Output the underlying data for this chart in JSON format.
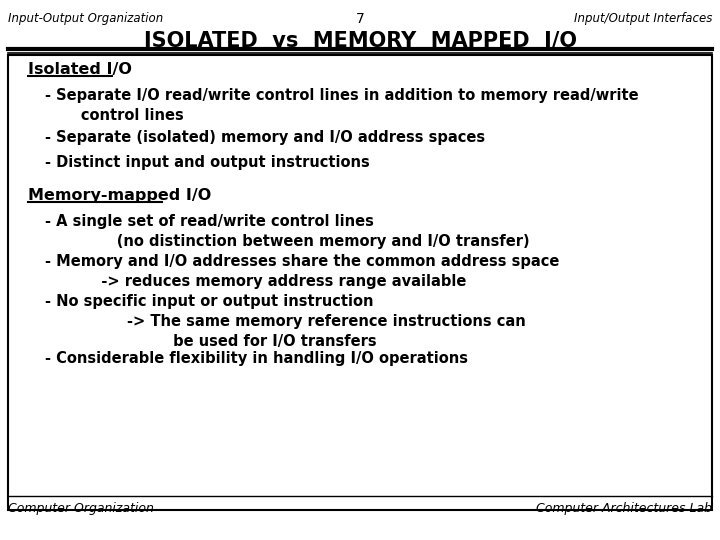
{
  "bg_color": "#ffffff",
  "border_color": "#000000",
  "header_top_left": "Input-Output Organization",
  "header_center": "7",
  "header_top_right": "Input/Output Interfaces",
  "title": "ISOLATED  vs  MEMORY  MAPPED  I/O",
  "footer_left": "Computer Organization",
  "footer_right": "Computer Architectures Lab",
  "section1_heading": "Isolated I/O",
  "section1_bullets": [
    "- Separate I/O read/write control lines in addition to memory read/write\n       control lines",
    "- Separate (isolated) memory and I/O address spaces",
    "- Distinct input and output instructions"
  ],
  "section2_heading": "Memory-mapped I/O",
  "section2_bullets": [
    "- A single set of read/write control lines\n              (no distinction between memory and I/O transfer)",
    "- Memory and I/O addresses share the common address space\n           -> reduces memory address range available",
    "- No specific input or output instruction\n                -> The same memory reference instructions can\n                         be used for I/O transfers",
    "- Considerable flexibility in handling I/O operations"
  ]
}
